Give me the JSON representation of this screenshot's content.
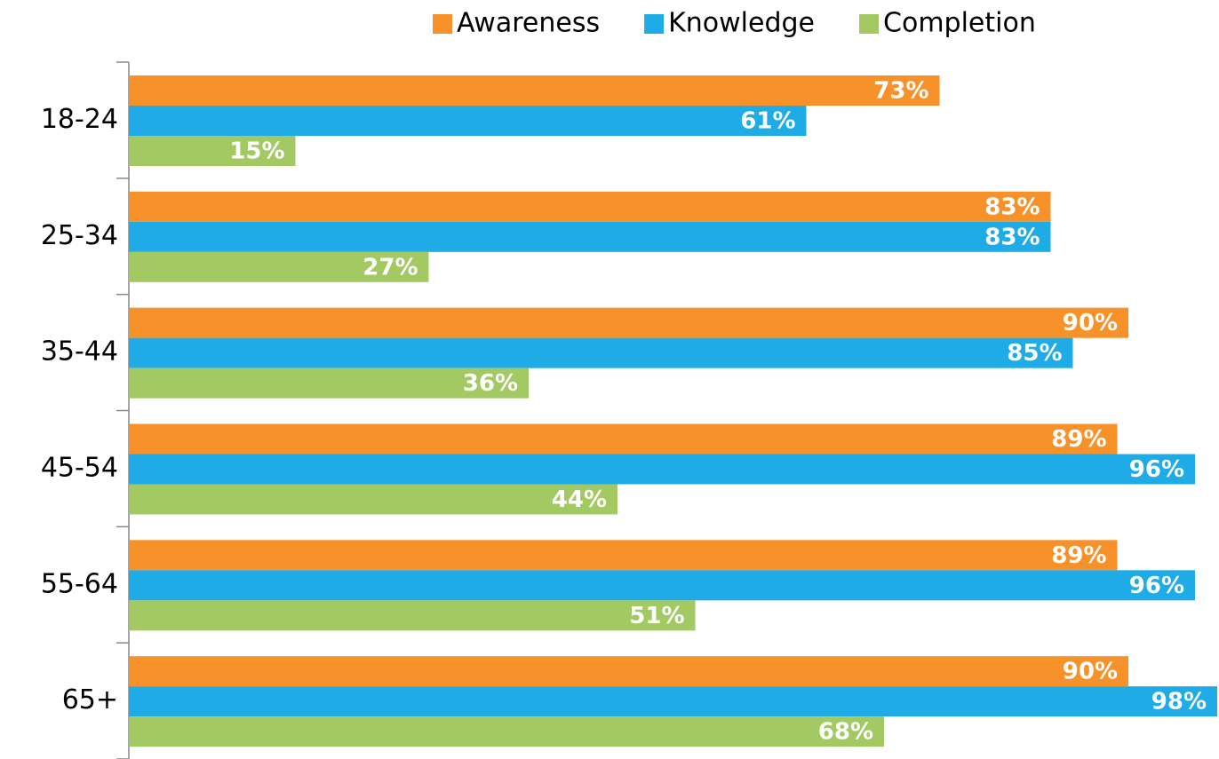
{
  "chart_data": {
    "type": "hbar",
    "categories": [
      "18-24",
      "25-34",
      "35-44",
      "45-54",
      "55-64",
      "65+"
    ],
    "series": [
      {
        "name": "Awareness",
        "color": "#f7922a",
        "values": [
          73,
          83,
          90,
          89,
          89,
          90
        ],
        "value_labels": [
          "73%",
          "83%",
          "90%",
          "89%",
          "89%",
          "90%"
        ]
      },
      {
        "name": "Knowledge",
        "color": "#1fabe6",
        "values": [
          61,
          83,
          85,
          96,
          96,
          98
        ],
        "value_labels": [
          "61%",
          "83%",
          "85%",
          "96%",
          "96%",
          "98%"
        ]
      },
      {
        "name": "Completion",
        "color": "#a3c963",
        "values": [
          15,
          27,
          36,
          44,
          51,
          68
        ],
        "value_labels": [
          "15%",
          "27%",
          "36%",
          "44%",
          "51%",
          "68%"
        ]
      }
    ],
    "xlim": [
      0,
      98
    ],
    "legend": "top"
  }
}
